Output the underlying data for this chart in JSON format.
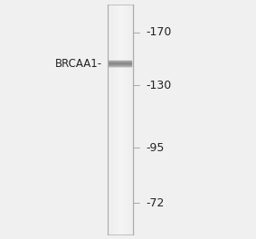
{
  "bg_color": "#f0f0f0",
  "gel_bg": "#e8e8e8",
  "lane_color": "#d0d0d0",
  "band_color": "#888888",
  "band_dark_color": "#555555",
  "label_text": "BRCAA1-",
  "mw_markers": [
    170,
    130,
    95,
    72
  ],
  "mw_labels": [
    "-170",
    "-130",
    "-95",
    "-72"
  ],
  "band_mw": 145,
  "mw_min": 60,
  "mw_max": 200,
  "fig_width": 2.83,
  "fig_height": 2.64,
  "dpi": 100
}
